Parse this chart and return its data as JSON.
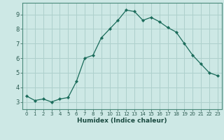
{
  "x": [
    0,
    1,
    2,
    3,
    4,
    5,
    6,
    7,
    8,
    9,
    10,
    11,
    12,
    13,
    14,
    15,
    16,
    17,
    18,
    19,
    20,
    21,
    22,
    23
  ],
  "y": [
    3.4,
    3.1,
    3.2,
    3.0,
    3.2,
    3.3,
    4.4,
    6.0,
    6.2,
    7.4,
    8.0,
    8.6,
    9.3,
    9.2,
    8.6,
    8.8,
    8.5,
    8.1,
    7.8,
    7.0,
    6.2,
    5.6,
    5.0,
    4.8
  ],
  "xlim": [
    -0.5,
    23.5
  ],
  "ylim": [
    2.5,
    9.8
  ],
  "yticks": [
    3,
    4,
    5,
    6,
    7,
    8,
    9
  ],
  "xticks": [
    0,
    1,
    2,
    3,
    4,
    5,
    6,
    7,
    8,
    9,
    10,
    11,
    12,
    13,
    14,
    15,
    16,
    17,
    18,
    19,
    20,
    21,
    22,
    23
  ],
  "xlabel": "Humidex (Indice chaleur)",
  "line_color": "#1a6b5a",
  "marker_color": "#1a6b5a",
  "bg_color": "#cde8e5",
  "grid_color": "#aed0cc",
  "tick_color": "#2a5a50",
  "label_color": "#1a4a40",
  "spine_color": "#4a8a7a"
}
